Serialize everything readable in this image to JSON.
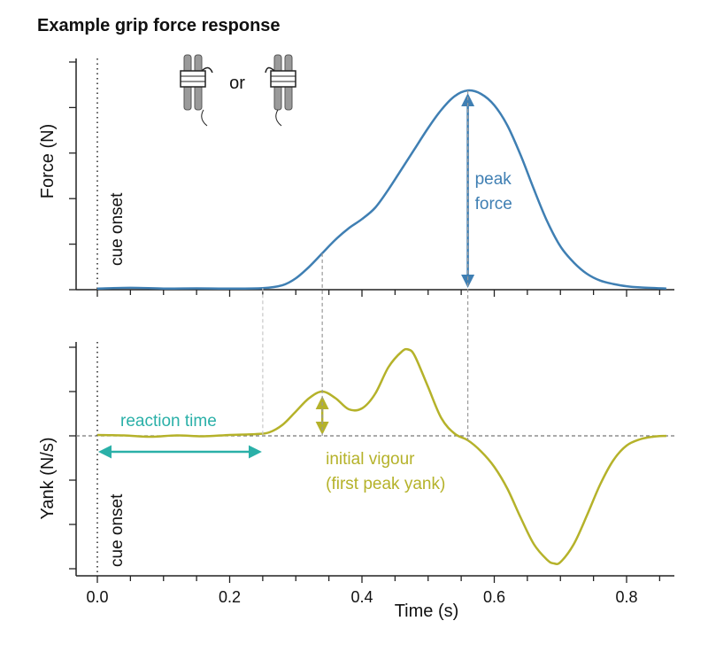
{
  "title": "Example grip force response",
  "icons_label": "or",
  "chart_data": [
    {
      "type": "line",
      "panel": "top",
      "ylabel": "Force (N)",
      "xlim": [
        0.0,
        0.86
      ],
      "ylim": [
        0,
        1.0
      ],
      "y_tick_labels_shown": false,
      "color": "#3f7fb3",
      "x": [
        0.0,
        0.05,
        0.1,
        0.15,
        0.2,
        0.25,
        0.28,
        0.3,
        0.32,
        0.34,
        0.36,
        0.38,
        0.4,
        0.42,
        0.44,
        0.46,
        0.48,
        0.5,
        0.52,
        0.54,
        0.56,
        0.58,
        0.6,
        0.62,
        0.64,
        0.66,
        0.68,
        0.7,
        0.72,
        0.74,
        0.76,
        0.78,
        0.8,
        0.82,
        0.86
      ],
      "y": [
        0.005,
        0.008,
        0.005,
        0.006,
        0.005,
        0.007,
        0.02,
        0.05,
        0.1,
        0.16,
        0.22,
        0.27,
        0.31,
        0.36,
        0.44,
        0.53,
        0.62,
        0.71,
        0.79,
        0.85,
        0.875,
        0.86,
        0.81,
        0.72,
        0.59,
        0.44,
        0.3,
        0.19,
        0.12,
        0.07,
        0.04,
        0.025,
        0.015,
        0.01,
        0.005
      ],
      "annotations": {
        "cue": {
          "label": "cue onset",
          "x": 0.0
        },
        "peak": {
          "label_line1": "peak",
          "label_line2": "force",
          "x": 0.56
        }
      }
    },
    {
      "type": "line",
      "panel": "bottom",
      "ylabel": "Yank (N/s)",
      "xlabel": "Time (s)",
      "xlim": [
        0.0,
        0.86
      ],
      "ylim": [
        -3.0,
        2.0
      ],
      "x_ticks": [
        0.0,
        0.2,
        0.4,
        0.6,
        0.8
      ],
      "x_tick_labels": [
        "0.0",
        "0.2",
        "0.4",
        "0.6",
        "0.8"
      ],
      "y_tick_labels_shown": false,
      "color": "#b5b22a",
      "x": [
        0.0,
        0.04,
        0.08,
        0.12,
        0.16,
        0.2,
        0.24,
        0.26,
        0.28,
        0.3,
        0.32,
        0.34,
        0.36,
        0.38,
        0.4,
        0.42,
        0.44,
        0.46,
        0.47,
        0.48,
        0.5,
        0.52,
        0.54,
        0.56,
        0.58,
        0.6,
        0.62,
        0.64,
        0.66,
        0.68,
        0.69,
        0.7,
        0.72,
        0.74,
        0.76,
        0.78,
        0.8,
        0.82,
        0.84,
        0.86
      ],
      "y": [
        0.02,
        0.01,
        -0.02,
        0.01,
        -0.01,
        0.02,
        0.04,
        0.08,
        0.25,
        0.55,
        0.85,
        1.0,
        0.85,
        0.6,
        0.62,
        0.95,
        1.55,
        1.9,
        1.95,
        1.8,
        1.1,
        0.4,
        0.05,
        -0.1,
        -0.35,
        -0.7,
        -1.2,
        -1.85,
        -2.45,
        -2.8,
        -2.88,
        -2.85,
        -2.45,
        -1.8,
        -1.1,
        -0.55,
        -0.22,
        -0.08,
        -0.02,
        0.0
      ],
      "annotations": {
        "cue": {
          "label": "cue onset",
          "x": 0.0
        },
        "reaction_time": {
          "label": "reaction time",
          "x_start": 0.0,
          "x_end": 0.25,
          "color": "#2ab0a8"
        },
        "initial_vigour": {
          "label_line1": "initial vigour",
          "label_line2": "(first peak yank)",
          "x": 0.34,
          "y": 1.0
        },
        "zero_line": 0.0
      },
      "guide_lines_x": [
        0.25,
        0.34,
        0.56
      ]
    }
  ]
}
